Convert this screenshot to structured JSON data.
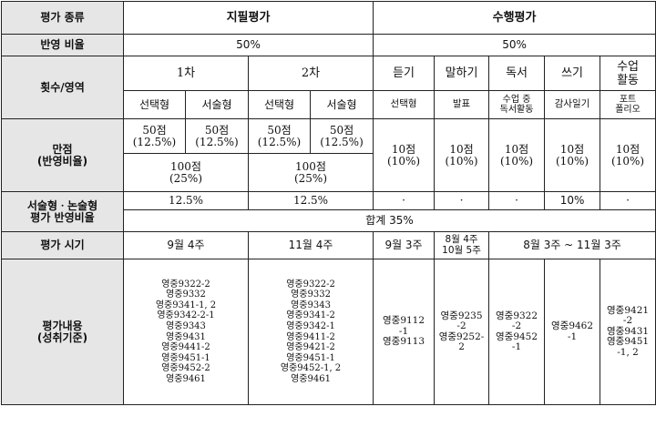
{
  "row_labels": {
    "type": "평가 종류",
    "ratio": "반영 비율",
    "count_area": "횟수/영역",
    "score": [
      "만점",
      "(반영비율)"
    ],
    "essay": [
      "서술형ㆍ논술형",
      "평가 반영비율"
    ],
    "timing": "평가 시기",
    "content": [
      "평가내용",
      "(성취기준)"
    ]
  },
  "written": {
    "title": "지필평가",
    "ratio": "50%",
    "rounds": [
      "1차",
      "2차"
    ],
    "subtypes": [
      "선택형",
      "서술형",
      "선택형",
      "서술형"
    ],
    "sub_scores": [
      [
        "50점",
        "(12.5%)"
      ],
      [
        "50점",
        "(12.5%)"
      ],
      [
        "50점",
        "(12.5%)"
      ],
      [
        "50점",
        "(12.5%)"
      ]
    ],
    "round_totals": [
      [
        "100점",
        "(25%)"
      ],
      [
        "100점",
        "(25%)"
      ]
    ],
    "essay_ratio": [
      "12.5%",
      "12.5%"
    ],
    "timing": [
      "9월 4주",
      "11월 4주"
    ],
    "content": [
      [
        "영중9322-2",
        "영중9332",
        "영중9341-1, 2",
        "영중9342-2-1",
        "영중9343",
        "영중9431",
        "영중9441-2",
        "영중9451-1",
        "영중9452-2",
        "영중9461"
      ],
      [
        "영중9322-2",
        "영중9332",
        "영중9343",
        "영중9341-2",
        "영중9342-1",
        "영중9411-2",
        "영중9421-2",
        "영중9451-1",
        "영중9452-1, 2",
        "영중9461"
      ]
    ]
  },
  "performance": {
    "title": "수행평가",
    "ratio": "50%",
    "areas": [
      {
        "name": [
          "듣기"
        ],
        "sub": [
          "선택형"
        ],
        "score": [
          "10점",
          "(10%)"
        ],
        "essay": "·",
        "content": [
          "영중9112",
          "-1",
          "영중9113"
        ]
      },
      {
        "name": [
          "말하기"
        ],
        "sub": [
          "발표"
        ],
        "score": [
          "10점",
          "(10%)"
        ],
        "essay": "·",
        "content": [
          "영중9235",
          "-2",
          "영중9252-",
          "2"
        ]
      },
      {
        "name": [
          "독서"
        ],
        "sub": [
          "수업 중",
          "독서활동"
        ],
        "score": [
          "10점",
          "(10%)"
        ],
        "essay": "·",
        "content": [
          "영중9322",
          "-2",
          "영중9452",
          "-1"
        ]
      },
      {
        "name": [
          "쓰기"
        ],
        "sub": [
          "감사일기"
        ],
        "score": [
          "10점",
          "(10%)"
        ],
        "essay": "10%",
        "content": [
          "영중9462",
          "-1"
        ]
      },
      {
        "name": [
          "수업",
          "활동"
        ],
        "sub": [
          "포트",
          "폴리오"
        ],
        "score": [
          "10점",
          "(10%)"
        ],
        "essay": "·",
        "content": [
          "영중9421",
          "-2",
          "영중9431",
          "영중9451",
          "-1, 2"
        ]
      }
    ],
    "timing": [
      [
        "9월 3주"
      ],
      [
        "8월 4주",
        "10월 5주"
      ],
      [
        "8월 3주 ~ 11월 3주"
      ]
    ]
  },
  "essay_total": "합계 35%"
}
